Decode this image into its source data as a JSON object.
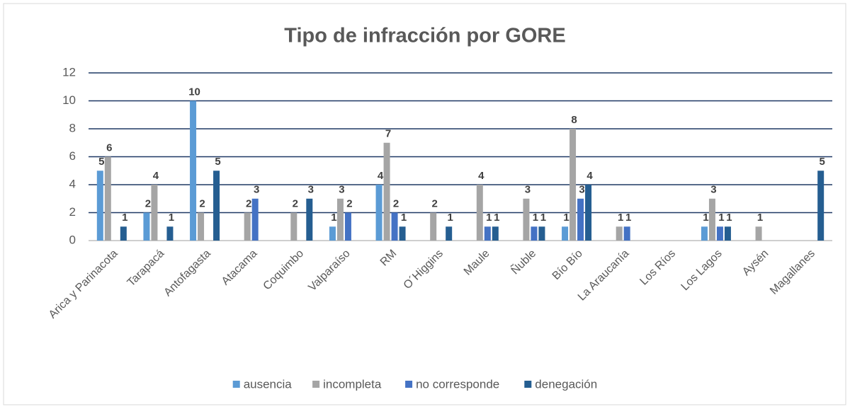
{
  "chart_data": {
    "type": "bar",
    "title": "Tipo de infracción por GORE",
    "categories": [
      "Arica y Parinacota",
      "Tarapacá",
      "Antofagasta",
      "Atacama",
      "Coquimbo",
      "Valparaíso",
      "RM",
      "O´Higgins",
      "Maule",
      "Ñuble",
      "Bío Bío",
      "La Araucanía",
      "Los Ríos",
      "Los Lagos",
      "Aysén",
      "Magallanes"
    ],
    "series": [
      {
        "name": "ausencia",
        "color": "#5b9bd5",
        "values": [
          5,
          2,
          10,
          0,
          0,
          1,
          4,
          0,
          0,
          0,
          1,
          0,
          0,
          1,
          0,
          0
        ]
      },
      {
        "name": "incompleta",
        "color": "#a5a5a5",
        "values": [
          6,
          4,
          2,
          2,
          2,
          3,
          7,
          2,
          4,
          3,
          8,
          1,
          0,
          3,
          1,
          0
        ]
      },
      {
        "name": "no corresponde",
        "color": "#4472c4",
        "values": [
          0,
          0,
          0,
          3,
          0,
          2,
          2,
          0,
          1,
          1,
          3,
          1,
          0,
          1,
          0,
          0
        ]
      },
      {
        "name": "denegación",
        "color": "#255e91",
        "values": [
          1,
          1,
          5,
          0,
          3,
          0,
          1,
          1,
          1,
          1,
          4,
          0,
          0,
          1,
          0,
          5
        ]
      }
    ],
    "ylim": [
      0,
      12
    ],
    "yticks": [
      0,
      2,
      4,
      6,
      8,
      10,
      12
    ],
    "grid": true,
    "legend": "bottom"
  }
}
